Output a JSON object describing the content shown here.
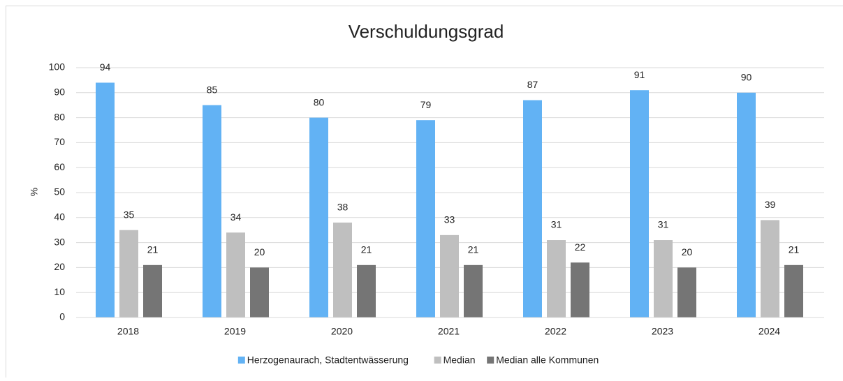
{
  "chart_data": {
    "type": "bar",
    "title": "Verschuldungsgrad",
    "y_label": "%",
    "categories": [
      "2018",
      "2019",
      "2020",
      "2021",
      "2022",
      "2023",
      "2024"
    ],
    "series": [
      {
        "name": "Herzogenaurach, Stadtentwässerung",
        "color": "#62b2f4",
        "values": [
          94,
          85,
          80,
          79,
          87,
          91,
          90
        ]
      },
      {
        "name": "Median",
        "color": "#bfbfbf",
        "values": [
          35,
          34,
          38,
          33,
          31,
          31,
          39
        ]
      },
      {
        "name": "Median alle Kommunen",
        "color": "#757575",
        "values": [
          21,
          20,
          21,
          21,
          22,
          20,
          21
        ]
      }
    ],
    "ylim": [
      0,
      100
    ],
    "yticks": [
      0,
      10,
      20,
      30,
      40,
      50,
      60,
      70,
      80,
      90,
      100
    ],
    "grid": true,
    "legend": "bottom"
  }
}
